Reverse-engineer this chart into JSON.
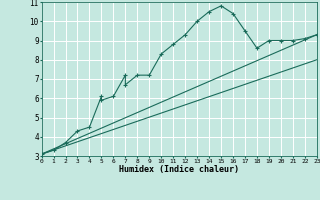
{
  "title": "",
  "xlabel": "Humidex (Indice chaleur)",
  "ylabel": "",
  "bg_color": "#c5e8e0",
  "line_color": "#1a6b5a",
  "grid_color": "#ffffff",
  "x_min": 0,
  "x_max": 23,
  "y_min": 3,
  "y_max": 11,
  "main_x": [
    0,
    1,
    2,
    3,
    4,
    5,
    5,
    6,
    7,
    7,
    8,
    9,
    10,
    11,
    12,
    13,
    14,
    15,
    16,
    17,
    18,
    19,
    20,
    21,
    22,
    23
  ],
  "main_y": [
    3.1,
    3.3,
    3.7,
    4.3,
    4.5,
    6.1,
    5.9,
    6.1,
    7.2,
    6.7,
    7.2,
    7.2,
    8.3,
    8.8,
    9.3,
    10.0,
    10.5,
    10.8,
    10.4,
    9.5,
    8.6,
    9.0,
    9.0,
    9.0,
    9.1,
    9.3
  ],
  "line1_x": [
    0,
    23
  ],
  "line1_y": [
    3.1,
    9.3
  ],
  "line2_x": [
    0,
    23
  ],
  "line2_y": [
    3.1,
    8.0
  ]
}
